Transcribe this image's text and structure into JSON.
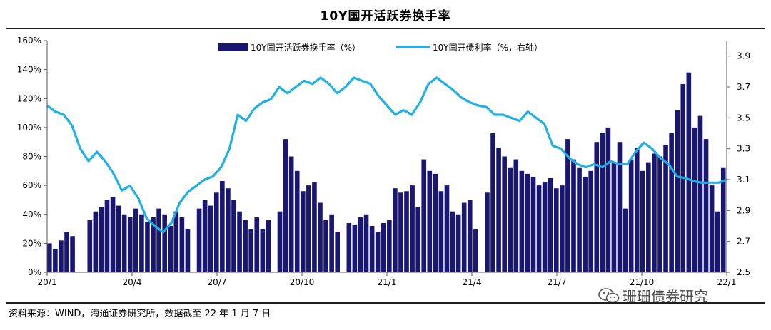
{
  "title": "10Y国开活跃券换手率",
  "source": "资料来源：WIND，海通证券研究所，数据截至 22 年 1 月 7 日",
  "watermark": "珊珊债券研究",
  "watermark_icon": "wechat-icon",
  "colors": {
    "bar": "#1a1774",
    "line": "#1fb0e8",
    "axis": "#555555",
    "rule": "#1f1f1f"
  },
  "chart_data": {
    "type": "bar+line",
    "title": "10Y国开活跃券换手率",
    "x_ticks": [
      "20/1",
      "20/4",
      "20/7",
      "20/10",
      "21/1",
      "21/4",
      "21/7",
      "21/10",
      "22/1"
    ],
    "y_left": {
      "ticks": [
        "0%",
        "20%",
        "40%",
        "60%",
        "80%",
        "100%",
        "120%",
        "140%",
        "160%"
      ],
      "range": [
        0,
        160
      ],
      "unit": "%"
    },
    "y_right": {
      "ticks": [
        "2.5",
        "2.7",
        "2.9",
        "3.1",
        "3.3",
        "3.5",
        "3.7",
        "3.9"
      ],
      "range": [
        2.5,
        4.0
      ]
    },
    "legend_position": "top",
    "series": [
      {
        "name": "10Y国开活跃券换手率（%）",
        "kind": "bar",
        "axis": "left",
        "description": "weekly-sampled turnover, % (approximate)",
        "values": [
          20,
          16,
          22,
          28,
          25,
          0,
          0,
          36,
          42,
          45,
          50,
          52,
          46,
          40,
          38,
          44,
          40,
          35,
          38,
          44,
          40,
          32,
          42,
          38,
          30,
          0,
          44,
          50,
          46,
          55,
          63,
          58,
          50,
          42,
          36,
          30,
          38,
          30,
          36,
          0,
          42,
          92,
          80,
          70,
          56,
          60,
          62,
          48,
          36,
          40,
          28,
          0,
          34,
          33,
          38,
          40,
          32,
          28,
          34,
          36,
          58,
          55,
          56,
          60,
          45,
          78,
          70,
          68,
          56,
          60,
          42,
          40,
          48,
          50,
          30,
          0,
          55,
          96,
          86,
          80,
          72,
          78,
          70,
          68,
          66,
          60,
          62,
          65,
          58,
          60,
          92,
          78,
          72,
          66,
          70,
          90,
          96,
          100,
          76,
          90,
          44,
          78,
          86,
          70,
          76,
          82,
          80,
          88,
          96,
          112,
          130,
          138,
          100,
          108,
          92,
          60,
          42,
          72
        ]
      },
      {
        "name": "10Y国开债利率（%，右轴）",
        "kind": "line",
        "axis": "right",
        "values": [
          3.58,
          3.54,
          3.52,
          3.45,
          3.3,
          3.22,
          3.28,
          3.22,
          3.14,
          3.03,
          3.06,
          2.98,
          2.85,
          2.8,
          2.76,
          2.82,
          2.95,
          3.02,
          3.06,
          3.1,
          3.12,
          3.18,
          3.3,
          3.52,
          3.48,
          3.56,
          3.6,
          3.62,
          3.7,
          3.66,
          3.7,
          3.74,
          3.72,
          3.76,
          3.72,
          3.66,
          3.7,
          3.76,
          3.74,
          3.72,
          3.64,
          3.58,
          3.52,
          3.55,
          3.52,
          3.6,
          3.72,
          3.76,
          3.72,
          3.68,
          3.63,
          3.6,
          3.58,
          3.57,
          3.52,
          3.52,
          3.5,
          3.48,
          3.54,
          3.5,
          3.46,
          3.32,
          3.3,
          3.24,
          3.2,
          3.18,
          3.2,
          3.18,
          3.22,
          3.2,
          3.2,
          3.28,
          3.34,
          3.3,
          3.24,
          3.2,
          3.12,
          3.11,
          3.09,
          3.08,
          3.08,
          3.08,
          3.1
        ]
      }
    ]
  }
}
